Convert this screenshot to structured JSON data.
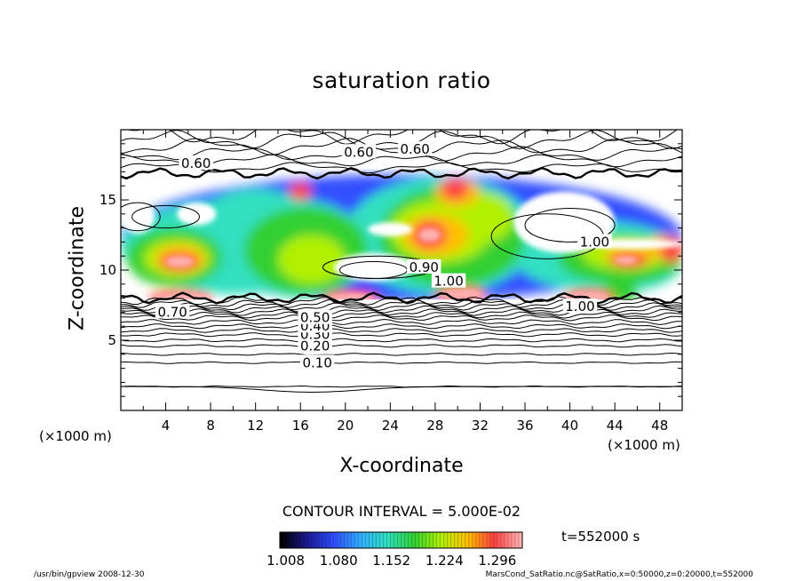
{
  "chart_data": {
    "type": "heatmap",
    "title": "saturation ratio",
    "xlabel": "X-coordinate",
    "ylabel": "Z-coordinate",
    "x_unit": "(×1000 m)",
    "y_unit": "(×1000 m)",
    "xlim": [
      0,
      50
    ],
    "ylim": [
      0,
      20
    ],
    "x_ticks": [
      "4",
      "8",
      "12",
      "16",
      "20",
      "24",
      "28",
      "32",
      "36",
      "40",
      "44",
      "48"
    ],
    "y_ticks": [
      "5",
      "10",
      "15"
    ],
    "contour_interval_label": "CONTOUR INTERVAL = 5.000E-02",
    "time_label": "t=552000 s",
    "colorbar": {
      "min": 1.0,
      "max": 1.33,
      "tick_values": [
        1.008,
        1.08,
        1.152,
        1.224,
        1.296
      ],
      "tick_labels": [
        "1.008",
        "1.080",
        "1.152",
        "1.224",
        "1.296"
      ],
      "colors": [
        "#000000",
        "#1a1a9a",
        "#3050ff",
        "#30b0ff",
        "#30e0c0",
        "#30d030",
        "#b0f000",
        "#ffc000",
        "#ff4040",
        "#ffb0b0"
      ]
    },
    "contour_labels": [
      {
        "text": "0.10",
        "x": 17.5,
        "z": 3.4
      },
      {
        "text": "0.20",
        "x": 17.3,
        "z": 4.6
      },
      {
        "text": "0.30",
        "x": 17.3,
        "z": 5.4
      },
      {
        "text": "0.40",
        "x": 17.3,
        "z": 6.0
      },
      {
        "text": "0.50",
        "x": 17.3,
        "z": 6.6
      },
      {
        "text": "0.70",
        "x": 4.6,
        "z": 7.0
      },
      {
        "text": "0.90",
        "x": 27.0,
        "z": 10.2
      },
      {
        "text": "1.00",
        "x": 29.2,
        "z": 9.2
      },
      {
        "text": "1.00",
        "x": 40.9,
        "z": 7.4
      },
      {
        "text": "1.00",
        "x": 42.2,
        "z": 12.0
      },
      {
        "text": "0.60",
        "x": 6.7,
        "z": 17.6
      },
      {
        "text": "0.60",
        "x": 21.2,
        "z": 18.4
      },
      {
        "text": "0.60",
        "x": 26.2,
        "z": 18.6
      }
    ]
  },
  "footer": {
    "left": "/usr/bin/gpview   2008-12-30",
    "right": "MarsCond_SatRatio.nc@SatRatio,x=0:50000,z=0:20000,t=552000"
  }
}
